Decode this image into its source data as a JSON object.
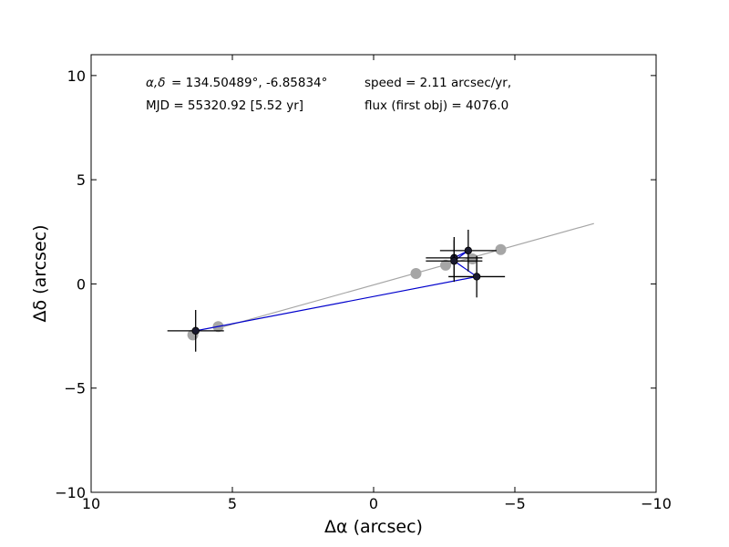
{
  "chart_data": {
    "type": "scatter",
    "xlabel": "Δα (arcsec)",
    "ylabel": "Δδ (arcsec)",
    "xlim": [
      10,
      -10
    ],
    "ylim": [
      -10,
      11
    ],
    "x_ticks": [
      10,
      5,
      0,
      -5,
      -10
    ],
    "y_ticks": [
      10,
      5,
      0,
      -5,
      -10
    ],
    "x_tick_labels": [
      "10",
      "5",
      "0",
      "−5",
      "−10"
    ],
    "y_tick_labels": [
      "10",
      "5",
      "0",
      "−5",
      "−10"
    ],
    "grid": false,
    "annotations": {
      "coords_label": "α,δ",
      "coords_value": "= 134.50489°, -6.85834°",
      "mjd": "MJD = 55320.92 [5.52 yr]",
      "speed": "speed = 2.11 arcsec/yr,",
      "flux": "flux (first obj) = 4076.0"
    },
    "series": [
      {
        "role": "fit-line",
        "color": "#a6a6a6",
        "points": [
          {
            "x": 5.3,
            "y": -2.05
          },
          {
            "x": -7.8,
            "y": 2.9
          }
        ]
      },
      {
        "role": "model-positions",
        "color": "#a6a6a6",
        "points": [
          {
            "x": 6.4,
            "y": -2.45
          },
          {
            "x": 5.5,
            "y": -2.05
          },
          {
            "x": -1.5,
            "y": 0.5
          },
          {
            "x": -2.55,
            "y": 0.9
          },
          {
            "x": -3.5,
            "y": 1.2
          },
          {
            "x": -4.5,
            "y": 1.65
          }
        ]
      },
      {
        "role": "path",
        "color": "#0000cc",
        "points": [
          {
            "x": 6.3,
            "y": -2.25
          },
          {
            "x": -3.65,
            "y": 0.35
          },
          {
            "x": -2.85,
            "y": 1.1
          },
          {
            "x": -3.35,
            "y": 1.6
          },
          {
            "x": -2.85,
            "y": 1.25
          }
        ]
      },
      {
        "role": "measurements",
        "color": "#1a1a2e",
        "points": [
          {
            "x": 6.3,
            "y": -2.25,
            "xerr": 1.0,
            "yerr": 1.0
          },
          {
            "x": -2.85,
            "y": 1.25,
            "xerr": 1.0,
            "yerr": 1.0
          },
          {
            "x": -2.85,
            "y": 1.1,
            "xerr": 1.0,
            "yerr": 1.0
          },
          {
            "x": -3.35,
            "y": 1.6,
            "xerr": 1.0,
            "yerr": 1.0
          },
          {
            "x": -3.65,
            "y": 0.35,
            "xerr": 1.0,
            "yerr": 1.0
          }
        ]
      }
    ]
  }
}
